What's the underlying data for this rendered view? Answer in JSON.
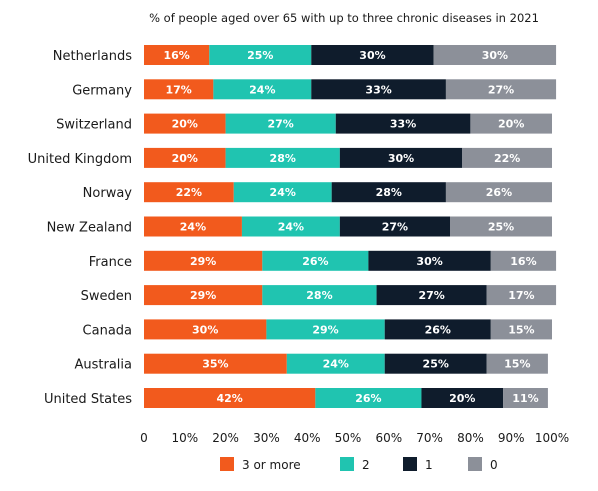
{
  "chart_data": {
    "type": "bar",
    "orientation": "horizontal",
    "stacked": true,
    "title": "% of people aged over 65 with up to three chronic diseases in 2021",
    "categories": [
      "Netherlands",
      "Germany",
      "Switzerland",
      "United Kingdom",
      "Norway",
      "New Zealand",
      "France",
      "Sweden",
      "Canada",
      "Australia",
      "United States"
    ],
    "series": [
      {
        "name": "3 or more",
        "color": "#f25a1d",
        "values": [
          16,
          17,
          20,
          20,
          22,
          24,
          29,
          29,
          30,
          35,
          42
        ]
      },
      {
        "name": "2",
        "color": "#20c4b0",
        "values": [
          25,
          24,
          27,
          28,
          24,
          24,
          26,
          28,
          29,
          24,
          26
        ]
      },
      {
        "name": "1",
        "color": "#0f1c2c",
        "values": [
          30,
          33,
          33,
          30,
          28,
          27,
          30,
          27,
          26,
          25,
          20
        ]
      },
      {
        "name": "0",
        "color": "#8c9099",
        "values": [
          30,
          27,
          20,
          22,
          26,
          25,
          16,
          17,
          15,
          15,
          11
        ]
      }
    ],
    "value_labels": [
      [
        "16%",
        "25%",
        "30%",
        "30%"
      ],
      [
        "17%",
        "24%",
        "33%",
        "27%"
      ],
      [
        "20%",
        "27%",
        "33%",
        "20%"
      ],
      [
        "20%",
        "28%",
        "30%",
        "22%"
      ],
      [
        "22%",
        "24%",
        "28%",
        "26%"
      ],
      [
        "24%",
        "24%",
        "27%",
        "25%"
      ],
      [
        "29%",
        "26%",
        "30%",
        "16%"
      ],
      [
        "29%",
        "28%",
        "27%",
        "17%"
      ],
      [
        "30%",
        "29%",
        "26%",
        "15%"
      ],
      [
        "35%",
        "24%",
        "25%",
        "15%"
      ],
      [
        "42%",
        "26%",
        "20%",
        "11%"
      ]
    ],
    "xlim": [
      0,
      100
    ],
    "x_ticks": [
      "0",
      "10%",
      "20%",
      "30%",
      "40%",
      "50%",
      "60%",
      "70%",
      "80%",
      "90%",
      "100%"
    ],
    "legend_position": "bottom",
    "grid": false
  }
}
